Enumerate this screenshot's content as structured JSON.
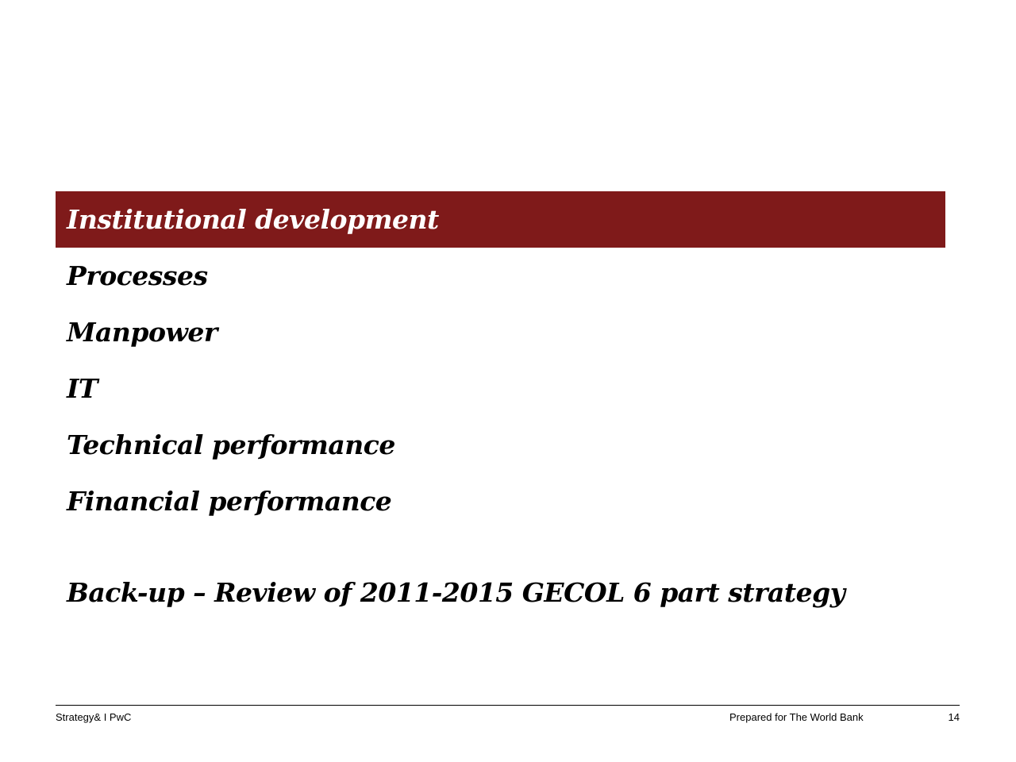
{
  "sections": [
    "Institutional development",
    "Processes",
    "Manpower",
    "IT",
    "Technical performance",
    "Financial performance"
  ],
  "backup": "Back-up – Review of 2011-2015 GECOL 6 part strategy",
  "footer": {
    "left": "Strategy& I PwC",
    "center": "Prepared for The World Bank",
    "page": "14"
  }
}
